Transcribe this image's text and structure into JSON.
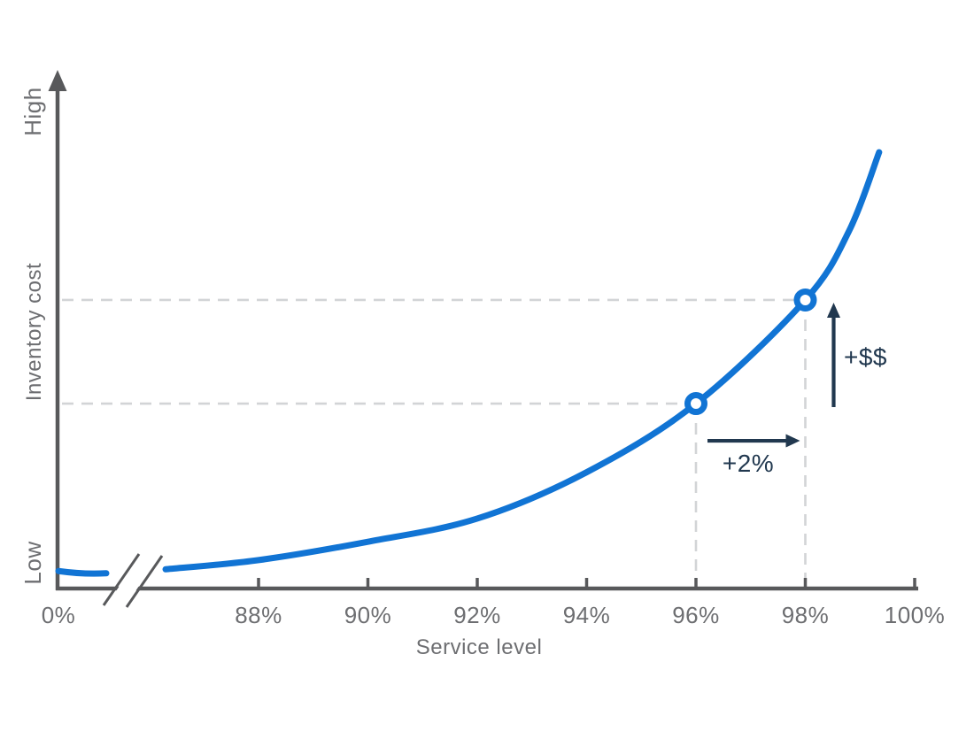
{
  "chart_data": {
    "type": "line",
    "title": "",
    "xlabel": "Service level",
    "ylabel": "Inventory cost",
    "y_scale": {
      "type": "qualitative",
      "low_label": "Low",
      "high_label": "High"
    },
    "x_ticks": [
      {
        "label": "0%",
        "service_level": 0
      },
      {
        "label": "88%",
        "service_level": 88
      },
      {
        "label": "90%",
        "service_level": 90
      },
      {
        "label": "92%",
        "service_level": 92
      },
      {
        "label": "94%",
        "service_level": 94
      },
      {
        "label": "96%",
        "service_level": 96
      },
      {
        "label": "98%",
        "service_level": 98
      },
      {
        "label": "100%",
        "service_level": 100
      }
    ],
    "axis_break": {
      "present": true,
      "location": "x-axis between 0% and 88%"
    },
    "series": [
      {
        "name": "Inventory cost",
        "color": "#1174D4",
        "points": [
          {
            "service_level": 0,
            "relative_cost": 0.042
          },
          {
            "service_level": 86.3,
            "relative_cost": 0.046
          },
          {
            "service_level": 88,
            "relative_cost": 0.067
          },
          {
            "service_level": 90,
            "relative_cost": 0.109
          },
          {
            "service_level": 92,
            "relative_cost": 0.162
          },
          {
            "service_level": 94,
            "relative_cost": 0.268
          },
          {
            "service_level": 96,
            "relative_cost": 0.425
          },
          {
            "service_level": 98,
            "relative_cost": 0.662
          },
          {
            "service_level": 98.8,
            "relative_cost": 0.82
          },
          {
            "service_level": 99.35,
            "relative_cost": 1.0
          }
        ]
      }
    ],
    "markers": [
      {
        "service_level": 96,
        "relative_cost": 0.425
      },
      {
        "service_level": 98,
        "relative_cost": 0.662
      }
    ],
    "annotations": [
      {
        "label": "+2%",
        "type": "horizontal-arrow",
        "from_service_level": 96,
        "to_service_level": 98
      },
      {
        "label": "+$$",
        "type": "vertical-arrow",
        "from_relative_cost": 0.425,
        "to_relative_cost": 0.662
      }
    ],
    "grid": "dashed guide lines from axes to the 96% and 98% markers only",
    "legend": "none",
    "colors": {
      "curve": "#1174D4",
      "axis": "#58595B",
      "labels": "#6D6E71",
      "dashed_guides": "#D2D4D6",
      "annotation": "#21384F",
      "background": "#FFFFFF"
    }
  }
}
